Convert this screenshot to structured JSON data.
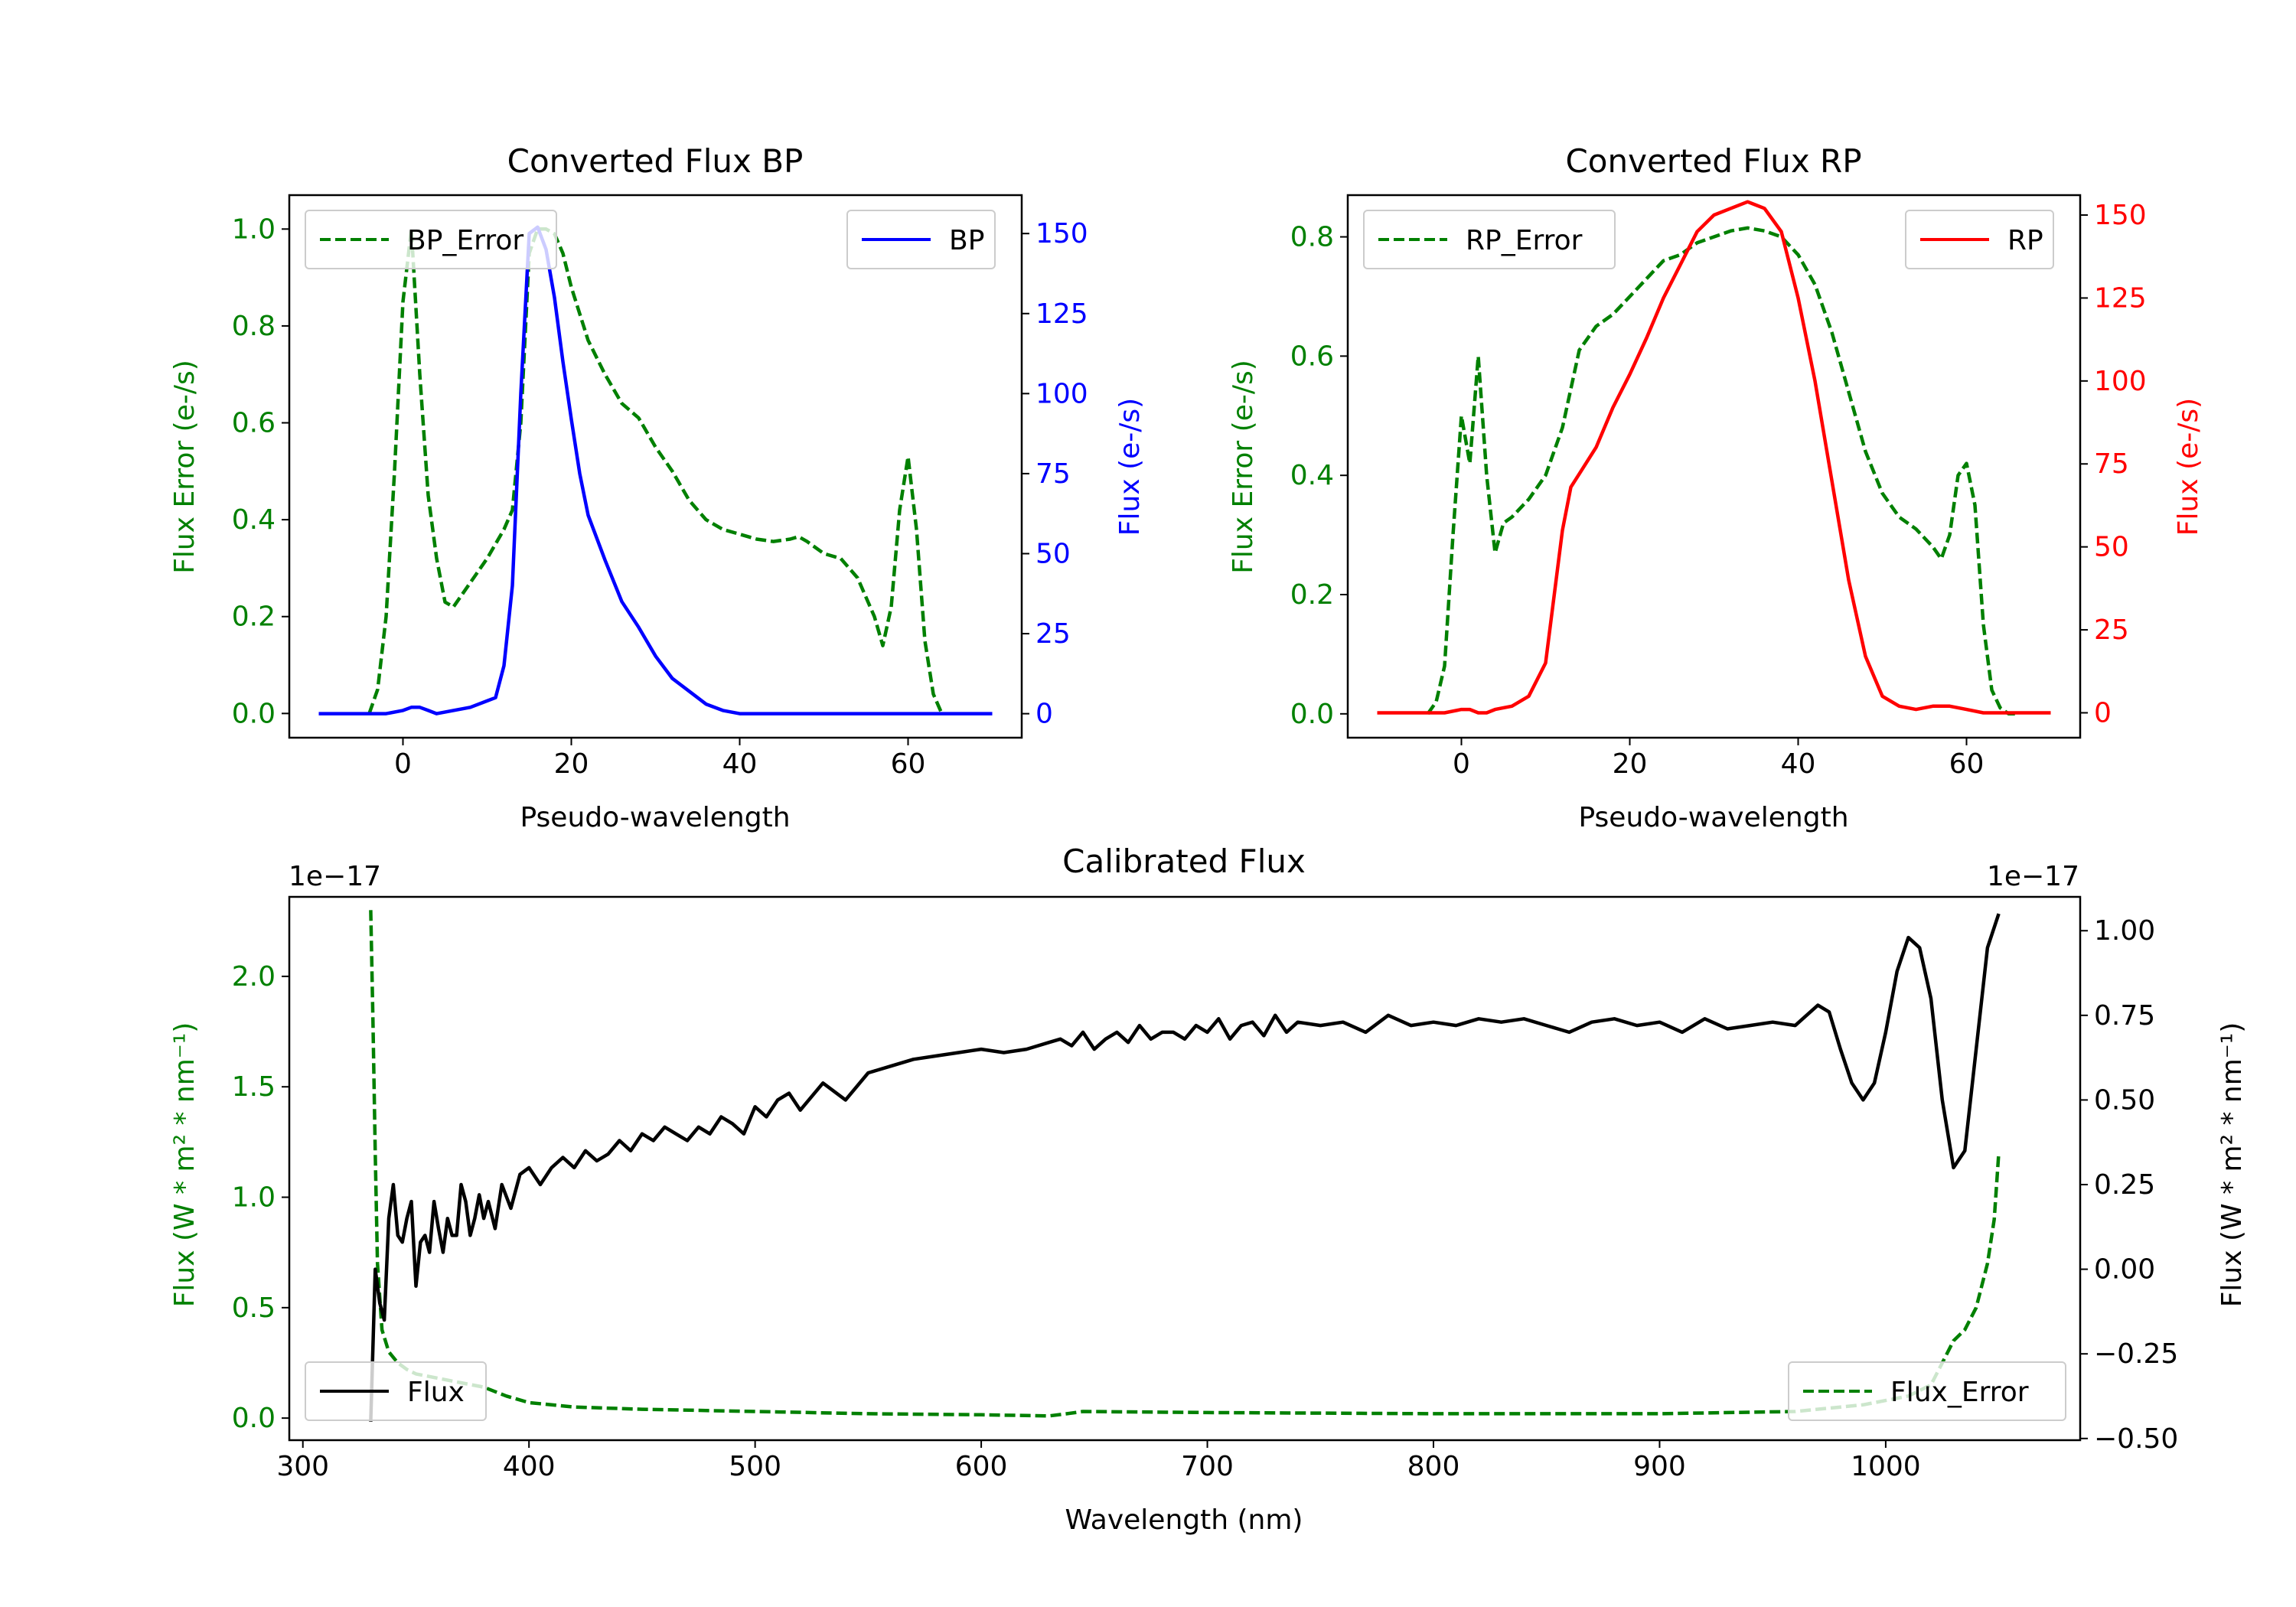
{
  "colors": {
    "green": "#008000",
    "blue": "#0000ff",
    "red": "#ff0000",
    "black": "#000000"
  },
  "chart_data": [
    {
      "id": "bp",
      "type": "line",
      "title": "Converted Flux BP",
      "xlabel": "Pseudo-wavelength",
      "ylabel_left": "Flux Error (e-/s)",
      "ylabel_right": "Flux (e-/s)",
      "xlim": [
        -13.5,
        73.5
      ],
      "ylim_left": [
        -0.05,
        1.07
      ],
      "ylim_right": [
        -7.5,
        162
      ],
      "xticks": [
        0,
        20,
        40,
        60
      ],
      "yticks_left": [
        0.0,
        0.2,
        0.4,
        0.6,
        0.8,
        1.0
      ],
      "yticks_right": [
        0,
        25,
        50,
        75,
        100,
        125,
        150
      ],
      "legend_left": "BP_Error",
      "legend_right": "BP",
      "series": [
        {
          "name": "BP_Error",
          "axis": "left",
          "color": "#008000",
          "dash": true,
          "x": [
            -4,
            -3,
            -2,
            -1,
            0,
            1,
            2,
            3,
            4,
            5,
            6,
            8,
            10,
            12,
            13,
            14,
            15,
            16,
            17,
            18,
            19,
            20,
            22,
            24,
            26,
            28,
            30,
            32,
            34,
            36,
            38,
            40,
            42,
            44,
            46,
            47,
            48,
            50,
            52,
            54,
            56,
            57,
            58,
            59,
            60,
            61,
            62,
            63,
            64
          ],
          "y": [
            0.0,
            0.05,
            0.2,
            0.5,
            0.85,
            1.0,
            0.7,
            0.45,
            0.32,
            0.23,
            0.22,
            0.27,
            0.32,
            0.38,
            0.42,
            0.6,
            0.95,
            1.0,
            1.0,
            0.99,
            0.95,
            0.88,
            0.77,
            0.7,
            0.64,
            0.61,
            0.55,
            0.5,
            0.44,
            0.4,
            0.38,
            0.37,
            0.36,
            0.355,
            0.36,
            0.365,
            0.355,
            0.33,
            0.32,
            0.28,
            0.2,
            0.14,
            0.22,
            0.42,
            0.53,
            0.38,
            0.15,
            0.04,
            0.0
          ]
        },
        {
          "name": "BP",
          "axis": "right",
          "color": "#0000ff",
          "dash": false,
          "x": [
            -10,
            -6,
            -4,
            -2,
            0,
            1,
            2,
            3,
            4,
            6,
            8,
            10,
            11,
            12,
            13,
            14,
            15,
            16,
            17,
            18,
            19,
            20,
            21,
            22,
            24,
            26,
            28,
            30,
            32,
            34,
            36,
            38,
            40,
            42,
            44,
            46,
            48,
            50,
            52,
            54,
            56,
            58,
            60,
            62,
            64,
            66,
            68,
            70
          ],
          "y": [
            0,
            0,
            0,
            0,
            1,
            2,
            2,
            1,
            0,
            1,
            2,
            4,
            5,
            15,
            40,
            100,
            150,
            152,
            145,
            130,
            110,
            92,
            75,
            62,
            48,
            35,
            27,
            18,
            11,
            7,
            3,
            1,
            0,
            0,
            0,
            0,
            0,
            0,
            0,
            0,
            0,
            0,
            0,
            0,
            0,
            0,
            0,
            0
          ]
        }
      ]
    },
    {
      "id": "rp",
      "type": "line",
      "title": "Converted Flux RP",
      "xlabel": "Pseudo-wavelength",
      "ylabel_left": "Flux Error (e-/s)",
      "ylabel_right": "Flux (e-/s)",
      "xlim": [
        -13.5,
        73.5
      ],
      "ylim_left": [
        -0.04,
        0.87
      ],
      "ylim_right": [
        -7.5,
        156
      ],
      "xticks": [
        0,
        20,
        40,
        60
      ],
      "yticks_left": [
        0.0,
        0.2,
        0.4,
        0.6,
        0.8
      ],
      "yticks_right": [
        0,
        25,
        50,
        75,
        100,
        125,
        150
      ],
      "legend_left": "RP_Error",
      "legend_right": "RP",
      "series": [
        {
          "name": "RP_Error",
          "axis": "left",
          "color": "#008000",
          "dash": true,
          "x": [
            -4,
            -3,
            -2,
            -1,
            0,
            1,
            2,
            3,
            4,
            5,
            6,
            8,
            10,
            12,
            14,
            16,
            18,
            20,
            22,
            24,
            26,
            28,
            30,
            32,
            34,
            36,
            38,
            40,
            42,
            44,
            46,
            48,
            50,
            52,
            54,
            56,
            57,
            58,
            59,
            60,
            61,
            62,
            63,
            64,
            65,
            66
          ],
          "y": [
            0.0,
            0.02,
            0.08,
            0.3,
            0.5,
            0.42,
            0.6,
            0.4,
            0.27,
            0.32,
            0.33,
            0.36,
            0.4,
            0.48,
            0.61,
            0.65,
            0.67,
            0.7,
            0.73,
            0.76,
            0.77,
            0.79,
            0.8,
            0.81,
            0.815,
            0.81,
            0.8,
            0.77,
            0.72,
            0.64,
            0.54,
            0.44,
            0.37,
            0.33,
            0.31,
            0.28,
            0.26,
            0.3,
            0.4,
            0.42,
            0.35,
            0.15,
            0.04,
            0.01,
            0.0,
            0.0
          ]
        },
        {
          "name": "RP",
          "axis": "right",
          "color": "#ff0000",
          "dash": false,
          "x": [
            -10,
            -6,
            -4,
            -2,
            0,
            1,
            2,
            3,
            4,
            6,
            8,
            10,
            11,
            12,
            13,
            14,
            16,
            18,
            20,
            22,
            24,
            26,
            28,
            30,
            32,
            34,
            35,
            36,
            38,
            40,
            42,
            44,
            46,
            48,
            50,
            52,
            54,
            56,
            58,
            60,
            62,
            64,
            66,
            68,
            70
          ],
          "y": [
            0,
            0,
            0,
            0,
            1,
            1,
            0,
            0,
            1,
            2,
            5,
            15,
            35,
            55,
            68,
            72,
            80,
            92,
            102,
            113,
            125,
            135,
            145,
            150,
            152,
            154,
            153,
            152,
            145,
            125,
            100,
            70,
            40,
            17,
            5,
            2,
            1,
            2,
            2,
            1,
            0,
            0,
            0,
            0,
            0
          ]
        }
      ]
    },
    {
      "id": "calibrated",
      "type": "line",
      "title": "Calibrated Flux",
      "xlabel": "Wavelength (nm)",
      "ylabel_left": "Flux (W * m² * nm⁻¹)",
      "ylabel_right": "Flux (W * m² * nm⁻¹)",
      "offset_left": "1e−17",
      "offset_right": "1e−17",
      "xlim": [
        294,
        1086
      ],
      "ylim_left": [
        -0.1,
        2.36
      ],
      "ylim_right": [
        -0.505,
        1.1
      ],
      "xticks": [
        300,
        400,
        500,
        600,
        700,
        800,
        900,
        1000
      ],
      "yticks_left": [
        0.0,
        0.5,
        1.0,
        1.5,
        2.0
      ],
      "yticks_right": [
        -0.5,
        -0.25,
        0.0,
        0.25,
        0.5,
        0.75,
        1.0
      ],
      "legend_left": "Flux",
      "legend_right": "Flux_Error",
      "series": [
        {
          "name": "Flux_Error",
          "axis": "left",
          "color": "#008000",
          "dash": true,
          "x": [
            330,
            331,
            332,
            333,
            335,
            338,
            342,
            346,
            350,
            360,
            370,
            380,
            390,
            400,
            420,
            450,
            500,
            550,
            600,
            630,
            638,
            645,
            700,
            800,
            900,
            960,
            990,
            1010,
            1020,
            1025,
            1030,
            1035,
            1040,
            1045,
            1048,
            1050
          ],
          "y": [
            2.3,
            1.8,
            1.2,
            0.7,
            0.4,
            0.3,
            0.25,
            0.22,
            0.2,
            0.18,
            0.16,
            0.14,
            0.1,
            0.07,
            0.05,
            0.04,
            0.03,
            0.02,
            0.015,
            0.01,
            0.02,
            0.03,
            0.025,
            0.02,
            0.02,
            0.03,
            0.06,
            0.1,
            0.15,
            0.25,
            0.35,
            0.4,
            0.5,
            0.7,
            0.9,
            1.2
          ]
        },
        {
          "name": "Flux",
          "axis": "right",
          "color": "#000000",
          "dash": false,
          "x": [
            330,
            332,
            334,
            336,
            338,
            340,
            342,
            344,
            346,
            348,
            350,
            352,
            354,
            356,
            358,
            360,
            362,
            364,
            366,
            368,
            370,
            372,
            374,
            376,
            378,
            380,
            382,
            385,
            388,
            392,
            396,
            400,
            405,
            410,
            415,
            420,
            425,
            430,
            435,
            440,
            445,
            450,
            455,
            460,
            465,
            470,
            475,
            480,
            485,
            490,
            495,
            500,
            505,
            510,
            515,
            520,
            530,
            540,
            550,
            560,
            570,
            580,
            590,
            600,
            610,
            620,
            630,
            635,
            640,
            645,
            650,
            655,
            660,
            665,
            670,
            675,
            680,
            685,
            690,
            695,
            700,
            705,
            710,
            715,
            720,
            725,
            730,
            735,
            740,
            750,
            760,
            770,
            780,
            790,
            800,
            810,
            820,
            830,
            840,
            850,
            860,
            870,
            880,
            890,
            900,
            910,
            920,
            930,
            940,
            950,
            960,
            965,
            970,
            975,
            980,
            985,
            990,
            995,
            1000,
            1005,
            1010,
            1015,
            1020,
            1025,
            1030,
            1035,
            1040,
            1045,
            1050
          ],
          "y": [
            -0.45,
            0.0,
            -0.1,
            -0.15,
            0.15,
            0.25,
            0.1,
            0.08,
            0.15,
            0.2,
            -0.05,
            0.08,
            0.1,
            0.05,
            0.2,
            0.12,
            0.05,
            0.15,
            0.1,
            0.1,
            0.25,
            0.2,
            0.1,
            0.15,
            0.22,
            0.15,
            0.2,
            0.12,
            0.25,
            0.18,
            0.28,
            0.3,
            0.25,
            0.3,
            0.33,
            0.3,
            0.35,
            0.32,
            0.34,
            0.38,
            0.35,
            0.4,
            0.38,
            0.42,
            0.4,
            0.38,
            0.42,
            0.4,
            0.45,
            0.43,
            0.4,
            0.48,
            0.45,
            0.5,
            0.52,
            0.47,
            0.55,
            0.5,
            0.58,
            0.6,
            0.62,
            0.63,
            0.64,
            0.65,
            0.64,
            0.65,
            0.67,
            0.68,
            0.66,
            0.7,
            0.65,
            0.68,
            0.7,
            0.67,
            0.72,
            0.68,
            0.7,
            0.7,
            0.68,
            0.72,
            0.7,
            0.74,
            0.68,
            0.72,
            0.73,
            0.69,
            0.75,
            0.7,
            0.73,
            0.72,
            0.73,
            0.7,
            0.75,
            0.72,
            0.73,
            0.72,
            0.74,
            0.73,
            0.74,
            0.72,
            0.7,
            0.73,
            0.74,
            0.72,
            0.73,
            0.7,
            0.74,
            0.71,
            0.72,
            0.73,
            0.72,
            0.75,
            0.78,
            0.76,
            0.65,
            0.55,
            0.5,
            0.55,
            0.7,
            0.88,
            0.98,
            0.95,
            0.8,
            0.5,
            0.3,
            0.35,
            0.65,
            0.95,
            1.05
          ]
        }
      ]
    }
  ]
}
